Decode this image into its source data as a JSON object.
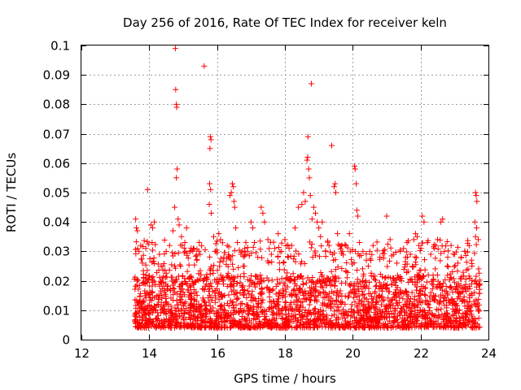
{
  "chart_data": {
    "type": "scatter",
    "title": "Day 256 of 2016, Rate Of TEC Index for receiver keln",
    "xlabel": "GPS time / hours",
    "ylabel": "ROTI / TECUs",
    "xlim": [
      12,
      24
    ],
    "ylim": [
      0,
      0.1
    ],
    "x_ticks": [
      "12",
      "14",
      "16",
      "18",
      "20",
      "22",
      "24"
    ],
    "y_ticks": [
      "0",
      "0.01",
      "0.02",
      "0.03",
      "0.04",
      "0.05",
      "0.06",
      "0.07",
      "0.08",
      "0.09",
      "0.1"
    ],
    "grid": true,
    "marker": "+",
    "marker_color": "#ff0000",
    "background_band": {
      "x_range": [
        13.55,
        23.75
      ],
      "baseline_range": [
        0.004,
        0.022
      ],
      "note": "dense cloud of samples, majority between 0.005 and 0.02"
    },
    "series": [
      {
        "name": "ROTI",
        "points": [
          [
            13.6,
            0.041
          ],
          [
            13.62,
            0.038
          ],
          [
            13.65,
            0.037
          ],
          [
            13.7,
            0.03
          ],
          [
            13.75,
            0.032
          ],
          [
            13.8,
            0.026
          ],
          [
            13.95,
            0.051
          ],
          [
            13.9,
            0.031
          ],
          [
            14.05,
            0.039
          ],
          [
            14.1,
            0.038
          ],
          [
            14.15,
            0.04
          ],
          [
            14.3,
            0.029
          ],
          [
            14.4,
            0.025
          ],
          [
            14.5,
            0.03
          ],
          [
            14.6,
            0.032
          ],
          [
            14.7,
            0.037
          ],
          [
            14.77,
            0.099
          ],
          [
            14.78,
            0.085
          ],
          [
            14.8,
            0.08
          ],
          [
            14.81,
            0.079
          ],
          [
            14.82,
            0.058
          ],
          [
            14.8,
            0.055
          ],
          [
            14.75,
            0.045
          ],
          [
            14.85,
            0.041
          ],
          [
            14.88,
            0.039
          ],
          [
            14.95,
            0.035
          ],
          [
            15.05,
            0.033
          ],
          [
            15.1,
            0.038
          ],
          [
            15.2,
            0.03
          ],
          [
            15.3,
            0.031
          ],
          [
            15.4,
            0.027
          ],
          [
            15.5,
            0.029
          ],
          [
            15.62,
            0.093
          ],
          [
            15.8,
            0.069
          ],
          [
            15.82,
            0.068
          ],
          [
            15.79,
            0.065
          ],
          [
            15.78,
            0.053
          ],
          [
            15.81,
            0.051
          ],
          [
            15.77,
            0.046
          ],
          [
            15.83,
            0.043
          ],
          [
            15.9,
            0.035
          ],
          [
            15.95,
            0.03
          ],
          [
            16.05,
            0.036
          ],
          [
            16.1,
            0.034
          ],
          [
            16.2,
            0.028
          ],
          [
            16.3,
            0.032
          ],
          [
            16.38,
            0.049
          ],
          [
            16.42,
            0.05
          ],
          [
            16.45,
            0.053
          ],
          [
            16.48,
            0.052
          ],
          [
            16.5,
            0.047
          ],
          [
            16.52,
            0.045
          ],
          [
            16.55,
            0.038
          ],
          [
            16.6,
            0.033
          ],
          [
            16.7,
            0.029
          ],
          [
            16.8,
            0.025
          ],
          [
            16.9,
            0.03
          ],
          [
            17.0,
            0.04
          ],
          [
            17.05,
            0.038
          ],
          [
            17.1,
            0.033
          ],
          [
            17.2,
            0.028
          ],
          [
            17.3,
            0.045
          ],
          [
            17.35,
            0.043
          ],
          [
            17.4,
            0.04
          ],
          [
            17.5,
            0.034
          ],
          [
            17.6,
            0.029
          ],
          [
            17.7,
            0.031
          ],
          [
            17.8,
            0.036
          ],
          [
            17.9,
            0.03
          ],
          [
            18.0,
            0.034
          ],
          [
            18.1,
            0.028
          ],
          [
            18.2,
            0.032
          ],
          [
            18.3,
            0.038
          ],
          [
            18.4,
            0.045
          ],
          [
            18.5,
            0.046
          ],
          [
            18.55,
            0.05
          ],
          [
            18.6,
            0.047
          ],
          [
            18.65,
            0.061
          ],
          [
            18.67,
            0.062
          ],
          [
            18.68,
            0.069
          ],
          [
            18.7,
            0.058
          ],
          [
            18.72,
            0.055
          ],
          [
            18.75,
            0.049
          ],
          [
            18.78,
            0.087
          ],
          [
            18.8,
            0.041
          ],
          [
            18.85,
            0.045
          ],
          [
            18.9,
            0.043
          ],
          [
            18.95,
            0.04
          ],
          [
            19.0,
            0.038
          ],
          [
            19.05,
            0.035
          ],
          [
            19.1,
            0.04
          ],
          [
            19.2,
            0.03
          ],
          [
            19.3,
            0.032
          ],
          [
            19.38,
            0.066
          ],
          [
            19.45,
            0.052
          ],
          [
            19.48,
            0.053
          ],
          [
            19.5,
            0.05
          ],
          [
            19.55,
            0.036
          ],
          [
            19.7,
            0.03
          ],
          [
            19.8,
            0.032
          ],
          [
            19.9,
            0.036
          ],
          [
            20.05,
            0.059
          ],
          [
            20.07,
            0.058
          ],
          [
            20.1,
            0.053
          ],
          [
            20.12,
            0.044
          ],
          [
            20.15,
            0.042
          ],
          [
            20.2,
            0.033
          ],
          [
            20.3,
            0.03
          ],
          [
            20.4,
            0.027
          ],
          [
            20.5,
            0.03
          ],
          [
            20.6,
            0.032
          ],
          [
            20.8,
            0.028
          ],
          [
            21.0,
            0.042
          ],
          [
            21.1,
            0.034
          ],
          [
            21.2,
            0.029
          ],
          [
            21.3,
            0.026
          ],
          [
            21.4,
            0.03
          ],
          [
            21.5,
            0.031
          ],
          [
            21.6,
            0.033
          ],
          [
            21.7,
            0.029
          ],
          [
            21.8,
            0.034
          ],
          [
            21.85,
            0.036
          ],
          [
            21.9,
            0.035
          ],
          [
            21.95,
            0.032
          ],
          [
            22.05,
            0.042
          ],
          [
            22.1,
            0.04
          ],
          [
            22.2,
            0.033
          ],
          [
            22.3,
            0.029
          ],
          [
            22.4,
            0.031
          ],
          [
            22.5,
            0.034
          ],
          [
            22.6,
            0.04
          ],
          [
            22.65,
            0.041
          ],
          [
            22.7,
            0.03
          ],
          [
            22.8,
            0.028
          ],
          [
            22.9,
            0.032
          ],
          [
            23.0,
            0.029
          ],
          [
            23.1,
            0.026
          ],
          [
            23.2,
            0.028
          ],
          [
            23.3,
            0.03
          ],
          [
            23.4,
            0.024
          ],
          [
            23.5,
            0.027
          ],
          [
            23.62,
            0.05
          ],
          [
            23.64,
            0.049
          ],
          [
            23.66,
            0.047
          ],
          [
            23.6,
            0.04
          ],
          [
            23.65,
            0.038
          ],
          [
            23.62,
            0.035
          ],
          [
            23.7,
            0.034
          ]
        ]
      }
    ]
  }
}
